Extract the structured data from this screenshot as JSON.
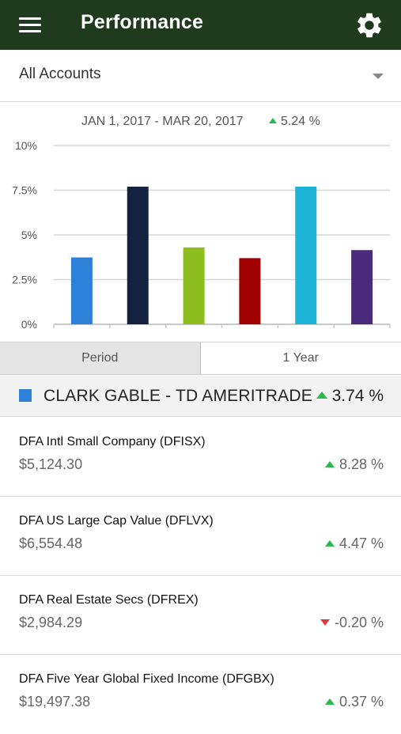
{
  "header": {
    "title": "Performance",
    "background": "#1f3a1c"
  },
  "account_selector": {
    "selected": "All Accounts"
  },
  "chart_summary": {
    "date_range": "JAN 1, 2017 - MAR 20, 2017",
    "change": "5.24 %",
    "direction": "up"
  },
  "chart_data": {
    "type": "bar",
    "categories": [
      "",
      "",
      "",
      "",
      "",
      ""
    ],
    "series": [
      {
        "values": [
          3.74,
          7.7,
          4.3,
          3.7,
          7.7,
          4.15
        ]
      }
    ],
    "colors": [
      "#2f80d9",
      "#13233f",
      "#8dbe1e",
      "#a00000",
      "#1db3d6",
      "#4a2a7a"
    ],
    "ytick_labels": [
      "0%",
      "2.5%",
      "5%",
      "7.5%",
      "10%"
    ],
    "yticks": [
      0,
      2.5,
      5,
      7.5,
      10
    ],
    "ylim": [
      0,
      10
    ],
    "grid": true
  },
  "tabs": [
    {
      "label": "Period",
      "active": true
    },
    {
      "label": "1 Year",
      "active": false
    }
  ],
  "account": {
    "name": "CLARK GABLE - TD AMERITRADE",
    "change": "3.74 %",
    "color": "#2f80d9",
    "direction": "up"
  },
  "holdings": [
    {
      "name": "DFA Intl Small Company (DFISX)",
      "value": "$5,124.30",
      "change": "8.28 %",
      "direction": "up"
    },
    {
      "name": "DFA US Large Cap Value (DFLVX)",
      "value": "$6,554.48",
      "change": "4.47 %",
      "direction": "up"
    },
    {
      "name": "DFA Real Estate Secs (DFREX)",
      "value": "$2,984.29",
      "change": "-0.20 %",
      "direction": "down"
    },
    {
      "name": "DFA Five Year Global Fixed Income (DFGBX)",
      "value": "$19,497.38",
      "change": "0.37 %",
      "direction": "up"
    }
  ],
  "status_colors": {
    "up": "#2db84c",
    "down": "#e03a3a"
  }
}
